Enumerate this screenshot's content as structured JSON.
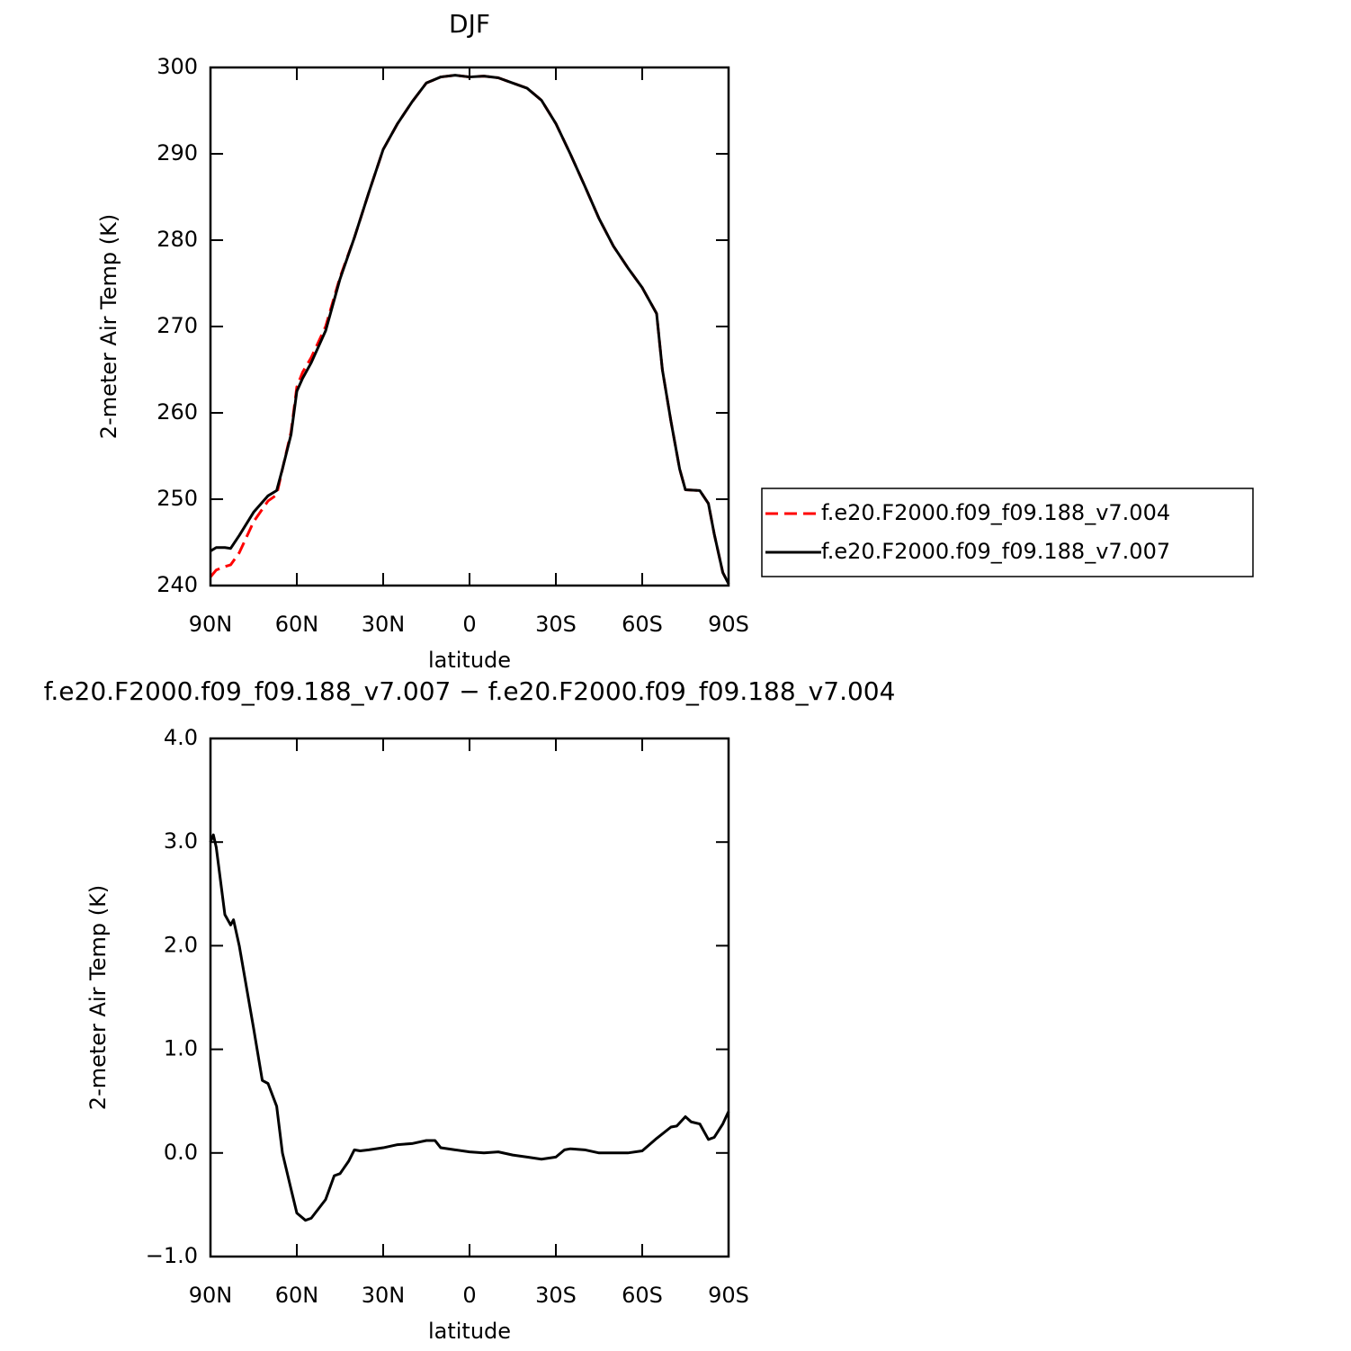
{
  "chart_data": [
    {
      "type": "line",
      "title": "DJF",
      "xlabel": "latitude",
      "ylabel": "2-meter Air Temp (K)",
      "x": [
        90,
        88,
        85,
        83,
        80,
        75,
        70,
        67,
        65,
        62,
        60,
        58,
        55,
        50,
        45,
        40,
        35,
        30,
        25,
        20,
        15,
        10,
        5,
        0,
        -5,
        -10,
        -15,
        -20,
        -25,
        -30,
        -35,
        -40,
        -45,
        -50,
        -55,
        -60,
        -65,
        -67,
        -70,
        -73,
        -75,
        -80,
        -83,
        -85,
        -88,
        -90
      ],
      "series": [
        {
          "name": "f.e20.F2000.f09_f09.188_v7.004",
          "color": "#ff0000",
          "dashed": true,
          "values": [
            241.0,
            241.8,
            242.2,
            242.4,
            243.8,
            247.4,
            249.8,
            250.5,
            253.5,
            257.8,
            263.0,
            264.7,
            266.4,
            270.0,
            275.7,
            280.3,
            285.5,
            290.5,
            293.5,
            296.0,
            298.2,
            298.9,
            299.1,
            298.9,
            299.0,
            298.8,
            298.2,
            297.6,
            296.2,
            293.5,
            290.0,
            286.3,
            282.5,
            279.3,
            276.8,
            274.5,
            271.5,
            265.0,
            259.0,
            253.5,
            251.1,
            251.0,
            249.5,
            246.0,
            241.5,
            240.2
          ]
        },
        {
          "name": "f.e20.F2000.f09_f09.188_v7.007",
          "color": "#000000",
          "dashed": false,
          "values": [
            244.0,
            244.4,
            244.4,
            244.3,
            245.8,
            248.5,
            250.4,
            251.0,
            253.5,
            257.5,
            262.5,
            264.0,
            265.8,
            269.5,
            275.5,
            280.3,
            285.5,
            290.5,
            293.5,
            296.0,
            298.2,
            298.9,
            299.1,
            298.9,
            299.0,
            298.8,
            298.2,
            297.6,
            296.2,
            293.5,
            290.0,
            286.3,
            282.5,
            279.3,
            276.8,
            274.5,
            271.5,
            265.0,
            259.0,
            253.5,
            251.1,
            251.0,
            249.5,
            246.0,
            241.5,
            240.2
          ]
        }
      ],
      "xlim": [
        90,
        -90
      ],
      "ylim": [
        240,
        300
      ],
      "xticks": [
        {
          "value": 90,
          "label": "90N"
        },
        {
          "value": 60,
          "label": "60N"
        },
        {
          "value": 30,
          "label": "30N"
        },
        0,
        {
          "value": -30,
          "label": "30S"
        },
        {
          "value": -60,
          "label": "60S"
        },
        {
          "value": -90,
          "label": "90S"
        }
      ],
      "yticks": [
        240,
        250,
        260,
        270,
        280,
        290,
        300
      ],
      "legend": "right"
    },
    {
      "type": "line",
      "title": "f.e20.F2000.f09_f09.188_v7.007 − f.e20.F2000.f09_f09.188_v7.004",
      "xlabel": "latitude",
      "ylabel": "2-meter Air Temp (K)",
      "x": [
        90,
        89,
        88,
        85,
        83,
        82,
        80,
        75,
        72,
        70,
        67,
        65,
        62,
        60,
        57,
        55,
        50,
        47,
        45,
        42,
        40,
        38,
        35,
        30,
        25,
        20,
        15,
        12,
        10,
        5,
        0,
        -5,
        -10,
        -15,
        -20,
        -25,
        -30,
        -33,
        -35,
        -40,
        -45,
        -50,
        -55,
        -60,
        -65,
        -70,
        -72,
        -75,
        -77,
        -80,
        -83,
        -85,
        -88,
        -90
      ],
      "series": [
        {
          "color": "#000000",
          "dashed": false,
          "values": [
            3.0,
            3.07,
            2.95,
            2.3,
            2.2,
            2.25,
            2.0,
            1.2,
            0.7,
            0.67,
            0.45,
            0.0,
            -0.35,
            -0.58,
            -0.65,
            -0.63,
            -0.45,
            -0.22,
            -0.2,
            -0.08,
            0.03,
            0.02,
            0.03,
            0.05,
            0.08,
            0.09,
            0.12,
            0.12,
            0.05,
            0.03,
            0.01,
            0.0,
            0.01,
            -0.02,
            -0.04,
            -0.06,
            -0.04,
            0.03,
            0.04,
            0.03,
            0.0,
            0.0,
            0.0,
            0.02,
            0.14,
            0.25,
            0.26,
            0.35,
            0.3,
            0.28,
            0.13,
            0.15,
            0.28,
            0.4
          ]
        }
      ],
      "xlim": [
        90,
        -90
      ],
      "ylim": [
        -1,
        4
      ],
      "xticks": [
        {
          "value": 90,
          "label": "90N"
        },
        {
          "value": 60,
          "label": "60N"
        },
        {
          "value": 30,
          "label": "30N"
        },
        0,
        {
          "value": -30,
          "label": "30S"
        },
        {
          "value": -60,
          "label": "60S"
        },
        {
          "value": -90,
          "label": "90S"
        }
      ],
      "yticks": [
        {
          "value": -1,
          "label": "−1.0"
        },
        {
          "value": 0,
          "label": "0.0"
        },
        {
          "value": 1,
          "label": "1.0"
        },
        {
          "value": 2,
          "label": "2.0"
        },
        {
          "value": 3,
          "label": "3.0"
        },
        {
          "value": 4,
          "label": "4.0"
        }
      ]
    }
  ]
}
